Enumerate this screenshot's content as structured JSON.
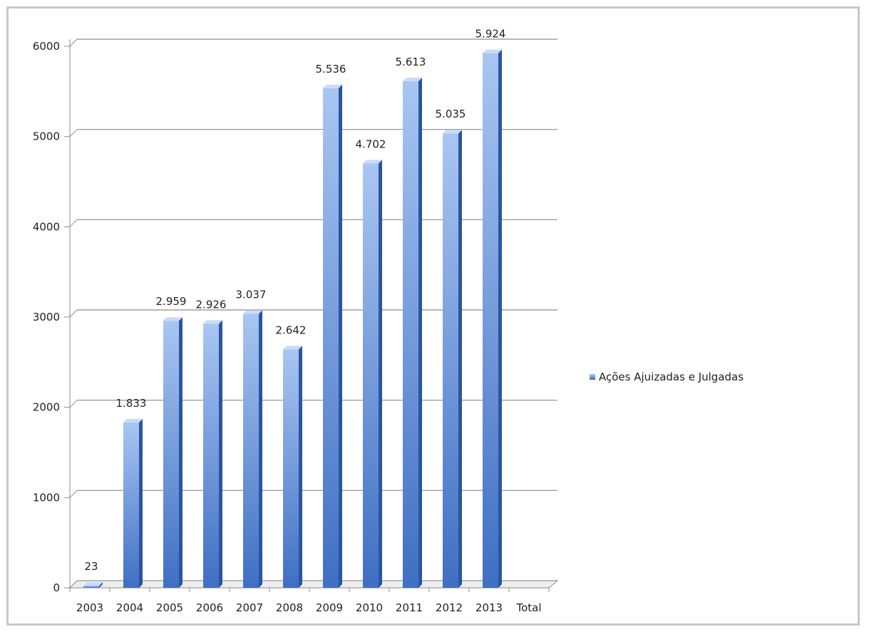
{
  "chart_data": {
    "type": "bar",
    "categories": [
      "2003",
      "2004",
      "2005",
      "2006",
      "2007",
      "2008",
      "2009",
      "2010",
      "2011",
      "2012",
      "2013",
      "Total"
    ],
    "series": [
      {
        "name": "Ações Ajuizadas e Julgadas",
        "values": [
          23,
          1833,
          2959,
          2926,
          3037,
          2642,
          5536,
          4702,
          5613,
          5035,
          5924,
          null
        ],
        "labels": [
          "23",
          "1.833",
          "2.959",
          "2.926",
          "3.037",
          "2.642",
          "5.536",
          "4.702",
          "5.613",
          "5.035",
          "5.924",
          ""
        ]
      }
    ],
    "yticks": [
      "0",
      "1000",
      "2000",
      "3000",
      "4000",
      "5000",
      "6000"
    ],
    "ylim": [
      0,
      6000
    ],
    "grid": true,
    "legend_position": "right",
    "colors": {
      "bar_light": "#a9c6f2",
      "bar_dark": "#3f6fc3",
      "bar_side": "#2b55a3",
      "grid": "#8c8c8c"
    }
  }
}
